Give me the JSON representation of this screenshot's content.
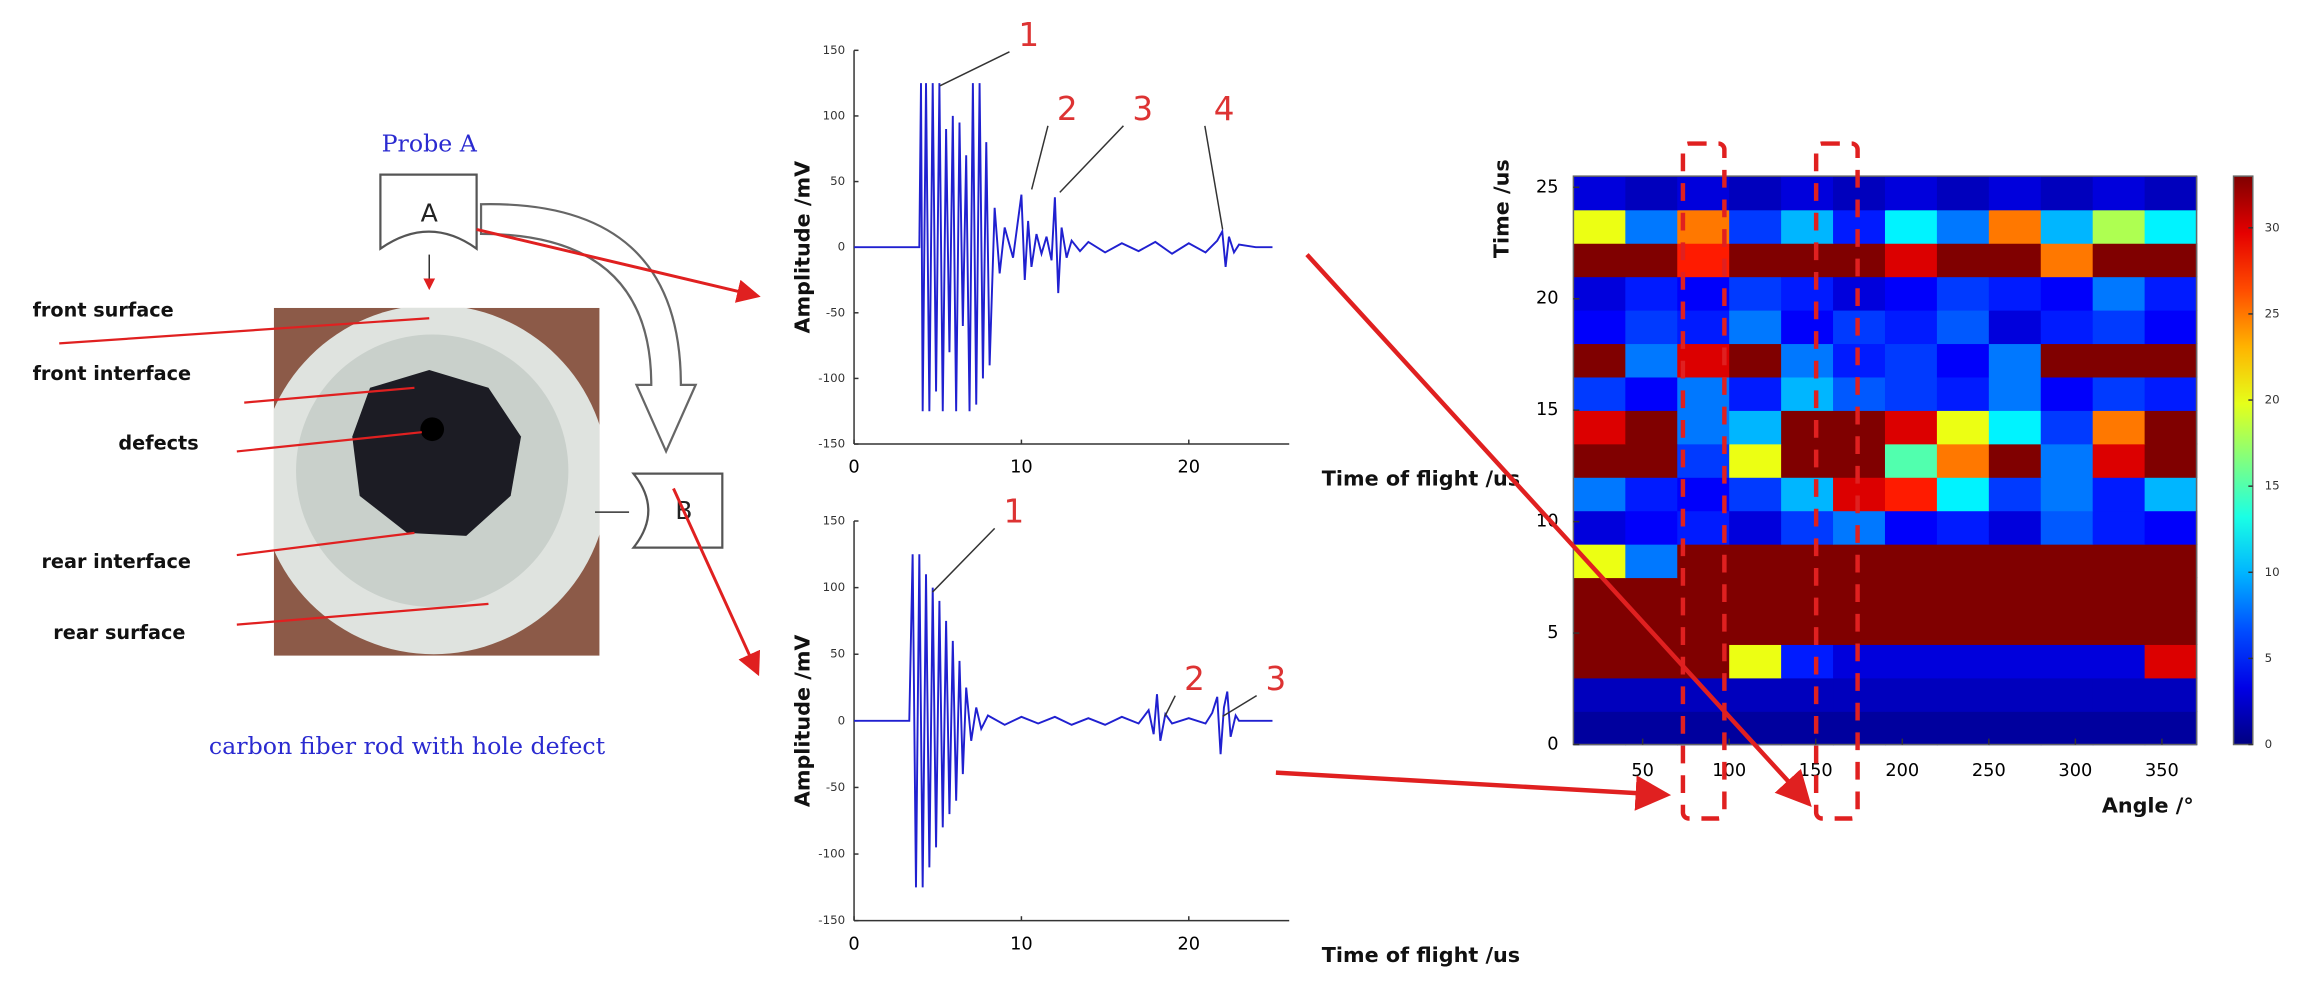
{
  "diagram": {
    "probe_a": "Probe A",
    "probe_a_letter": "A",
    "probe_b_letter": "B",
    "labels": [
      "front surface",
      "front interface",
      "defects",
      "rear interface",
      "rear surface"
    ],
    "caption": "carbon fiber rod with hole defect"
  },
  "chart_data": [
    {
      "type": "line",
      "ylabel": "Amplitude /mV",
      "xlabel": "Time of flight /us",
      "xlim": [
        0,
        26
      ],
      "xticks": [
        0,
        10,
        20
      ],
      "ylim": [
        -150,
        150
      ],
      "yticks": [
        150,
        100,
        50,
        0,
        -50,
        -100,
        -150
      ],
      "annotations": [
        "1",
        "2",
        "3",
        "4"
      ],
      "x": [
        0,
        3.9,
        4.0,
        4.1,
        4.3,
        4.5,
        4.7,
        4.9,
        5.1,
        5.3,
        5.5,
        5.7,
        5.9,
        6.1,
        6.3,
        6.5,
        6.7,
        6.9,
        7.1,
        7.3,
        7.5,
        7.7,
        7.9,
        8.1,
        8.4,
        8.7,
        9.0,
        9.5,
        10.0,
        10.2,
        10.4,
        10.6,
        10.9,
        11.2,
        11.5,
        11.8,
        12.0,
        12.2,
        12.4,
        12.7,
        13.0,
        13.5,
        14,
        15,
        16,
        17,
        18,
        19,
        20,
        21,
        21.7,
        22.0,
        22.2,
        22.4,
        22.7,
        23,
        24,
        25
      ],
      "series": [
        {
          "color": "#2020d0",
          "values": [
            0,
            0,
            125,
            -125,
            125,
            -125,
            125,
            -110,
            125,
            -125,
            90,
            -80,
            100,
            -125,
            95,
            -60,
            70,
            -125,
            125,
            -120,
            125,
            -100,
            80,
            -90,
            30,
            -20,
            15,
            -8,
            40,
            -25,
            20,
            -15,
            10,
            -5,
            8,
            -10,
            38,
            -35,
            15,
            -8,
            5,
            -3,
            4,
            -4,
            3,
            -3,
            4,
            -5,
            3,
            -4,
            5,
            12,
            -15,
            8,
            -4,
            2,
            0,
            0
          ]
        }
      ]
    },
    {
      "type": "line",
      "ylabel": "Amplitude /mV",
      "xlabel": "Time of flight /us",
      "xlim": [
        0,
        26
      ],
      "xticks": [
        0,
        10,
        20
      ],
      "ylim": [
        -150,
        150
      ],
      "yticks": [
        150,
        100,
        50,
        0,
        -50,
        -100,
        -150
      ],
      "annotations": [
        "1",
        "2",
        "3"
      ],
      "x": [
        0,
        3.3,
        3.5,
        3.7,
        3.9,
        4.1,
        4.3,
        4.5,
        4.7,
        4.9,
        5.1,
        5.3,
        5.5,
        5.7,
        5.9,
        6.1,
        6.3,
        6.5,
        6.7,
        7.0,
        7.3,
        7.6,
        8,
        9,
        10,
        11,
        12,
        13,
        14,
        15,
        16,
        17,
        17.6,
        17.9,
        18.1,
        18.3,
        18.6,
        19,
        20,
        21,
        21.4,
        21.7,
        21.9,
        22.1,
        22.3,
        22.5,
        22.8,
        23,
        24,
        25
      ],
      "series": [
        {
          "color": "#2020d0",
          "values": [
            0,
            0,
            125,
            -125,
            125,
            -125,
            110,
            -110,
            100,
            -95,
            90,
            -80,
            75,
            -70,
            60,
            -60,
            45,
            -40,
            25,
            -15,
            10,
            -6,
            4,
            -3,
            3,
            -2,
            3,
            -3,
            2,
            -3,
            3,
            -2,
            8,
            -10,
            20,
            -15,
            5,
            -2,
            2,
            -2,
            6,
            18,
            -25,
            10,
            22,
            -12,
            4,
            0,
            0,
            0
          ]
        }
      ]
    },
    {
      "type": "heatmap",
      "ylabel": "Time /us",
      "xlabel": "Angle /°",
      "colormap": "jet",
      "xlim": [
        10,
        370
      ],
      "xticks": [
        50,
        100,
        150,
        200,
        250,
        300,
        350
      ],
      "ylim": [
        0,
        25.5
      ],
      "yticks": [
        0,
        5,
        10,
        15,
        20,
        25
      ],
      "clim": [
        0,
        33
      ],
      "cticks": [
        0,
        5,
        10,
        15,
        20,
        25,
        30
      ],
      "x_edges": [
        10,
        40,
        70,
        100,
        130,
        160,
        190,
        220,
        250,
        280,
        310,
        340,
        370
      ],
      "y_edges": [
        0,
        1.5,
        3,
        4.5,
        6,
        7.5,
        9,
        10.5,
        12,
        13.5,
        15,
        16.5,
        18,
        19.5,
        21,
        22.5,
        24,
        25.5
      ],
      "z": [
        [
          1,
          1,
          1,
          1,
          1,
          1,
          1,
          1,
          1,
          1,
          1,
          1
        ],
        [
          2,
          2,
          2,
          2,
          2,
          2,
          2,
          2,
          2,
          2,
          2,
          2
        ],
        [
          33,
          33,
          33,
          20,
          5,
          3,
          3,
          3,
          3,
          3,
          3,
          30
        ],
        [
          33,
          33,
          33,
          33,
          33,
          33,
          33,
          33,
          33,
          33,
          33,
          33
        ],
        [
          33,
          33,
          33,
          33,
          33,
          33,
          33,
          33,
          33,
          33,
          33,
          33
        ],
        [
          20,
          8,
          33,
          33,
          33,
          33,
          33,
          33,
          33,
          33,
          33,
          33
        ],
        [
          3,
          4,
          5,
          3,
          6,
          8,
          4,
          5,
          3,
          7,
          5,
          4
        ],
        [
          8,
          5,
          4,
          6,
          10,
          30,
          28,
          12,
          6,
          8,
          5,
          10
        ],
        [
          33,
          33,
          6,
          20,
          33,
          33,
          15,
          25,
          33,
          8,
          30,
          33
        ],
        [
          30,
          33,
          8,
          10,
          33,
          33,
          30,
          20,
          12,
          6,
          25,
          33
        ],
        [
          6,
          4,
          8,
          5,
          10,
          7,
          6,
          5,
          8,
          4,
          6,
          5
        ],
        [
          33,
          8,
          30,
          33,
          8,
          5,
          6,
          4,
          8,
          33,
          33,
          33
        ],
        [
          4,
          6,
          5,
          8,
          4,
          6,
          5,
          7,
          3,
          5,
          6,
          4
        ],
        [
          3,
          5,
          4,
          6,
          5,
          3,
          4,
          6,
          5,
          4,
          8,
          5
        ],
        [
          33,
          33,
          28,
          33,
          33,
          33,
          30,
          33,
          33,
          25,
          33,
          33
        ],
        [
          20,
          8,
          25,
          6,
          10,
          5,
          12,
          8,
          25,
          10,
          18,
          12
        ],
        [
          3,
          2,
          3,
          2,
          3,
          2,
          3,
          2,
          3,
          2,
          3,
          2
        ]
      ]
    }
  ]
}
